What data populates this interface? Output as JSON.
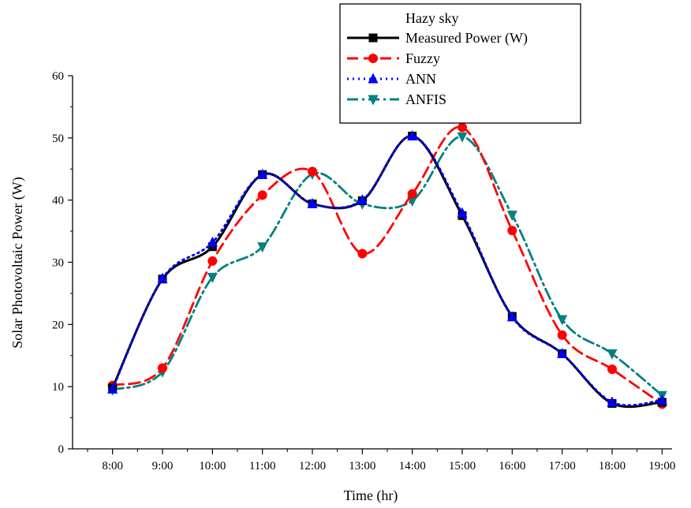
{
  "chart_data": {
    "type": "line",
    "title": "",
    "xlabel": "Time (hr)",
    "ylabel": "Solar Photovoltaic Power (W)",
    "ylim": [
      0,
      60
    ],
    "yticks": [
      0,
      10,
      20,
      30,
      40,
      50,
      60
    ],
    "categories": [
      "8:00",
      "9:00",
      "10:00",
      "11:00",
      "12:00",
      "13:00",
      "14:00",
      "15:00",
      "16:00",
      "17:00",
      "18:00",
      "19:00"
    ],
    "legend": {
      "title": "Hazy sky",
      "placement": "top-right"
    },
    "series": [
      {
        "name": "Measured Power (W)",
        "color": "#000000",
        "dash": "solid",
        "marker": "square",
        "values": [
          9.8,
          27.3,
          32.5,
          44.1,
          39.4,
          39.9,
          50.3,
          37.5,
          21.3,
          15.3,
          7.3,
          7.5
        ]
      },
      {
        "name": "Fuzzy",
        "color": "#ff0000",
        "dash": "dash",
        "marker": "circle",
        "values": [
          10.2,
          13.0,
          30.2,
          40.8,
          44.6,
          31.4,
          41.0,
          51.7,
          35.1,
          18.3,
          12.8,
          7.2
        ]
      },
      {
        "name": "ANN",
        "color": "#0000ff",
        "dash": "dot",
        "marker": "triangle-up",
        "values": [
          9.6,
          27.4,
          33.2,
          44.1,
          39.4,
          40.0,
          50.3,
          37.9,
          21.2,
          15.3,
          7.5,
          7.8
        ]
      },
      {
        "name": "ANFIS",
        "color": "#008080",
        "dash": "dashdot",
        "marker": "triangle-down",
        "values": [
          9.5,
          12.4,
          27.6,
          32.5,
          44.2,
          39.4,
          39.9,
          50.2,
          37.6,
          20.8,
          15.3,
          8.6
        ]
      }
    ]
  }
}
